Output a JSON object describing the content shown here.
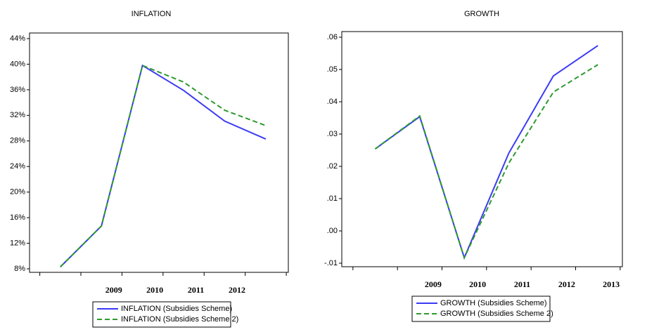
{
  "chart_data": [
    {
      "type": "line",
      "title": "INFLATION",
      "categories": [
        null,
        "2009",
        "2010",
        "2011",
        "2012",
        null
      ],
      "series": [
        {
          "name": "INFLATION (Subsidies Scheme)",
          "color": "#3b3bf5",
          "dashed": false,
          "values": [
            8.3,
            14.7,
            39.8,
            35.9,
            31.1,
            28.3
          ]
        },
        {
          "name": "INFLATION (Subsidies Scheme 2)",
          "color": "#2e9a2e",
          "dashed": true,
          "values": [
            8.3,
            14.7,
            39.8,
            37.2,
            32.8,
            30.4
          ]
        }
      ],
      "ylim": [
        8,
        44
      ],
      "yticks": [
        {
          "value": 8,
          "label": "8%"
        },
        {
          "value": 12,
          "label": "12%"
        },
        {
          "value": 16,
          "label": "16%"
        },
        {
          "value": 20,
          "label": "20%"
        },
        {
          "value": 24,
          "label": "24%"
        },
        {
          "value": 28,
          "label": "28%"
        },
        {
          "value": 32,
          "label": "32%"
        },
        {
          "value": 36,
          "label": "36%"
        },
        {
          "value": 40,
          "label": "40%"
        },
        {
          "value": 44,
          "label": "44%"
        }
      ],
      "grid": false
    },
    {
      "type": "line",
      "title": "GROWTH",
      "categories": [
        null,
        "2009",
        "2010",
        "2011",
        "2012",
        "2013"
      ],
      "series": [
        {
          "name": "GROWTH (Subsidies Scheme)",
          "color": "#3b3bf5",
          "dashed": false,
          "values": [
            0.0254,
            0.0354,
            -0.0083,
            0.0241,
            0.048,
            0.0574
          ]
        },
        {
          "name": "GROWTH (Subsidies Scheme 2)",
          "color": "#2e9a2e",
          "dashed": true,
          "values": [
            0.0254,
            0.0356,
            -0.0083,
            0.021,
            0.043,
            0.0515
          ]
        }
      ],
      "ylim": [
        -0.01,
        0.06
      ],
      "yticks": [
        {
          "value": -0.01,
          "label": "-.01"
        },
        {
          "value": 0,
          "label": ".00"
        },
        {
          "value": 0.01,
          "label": ".01"
        },
        {
          "value": 0.02,
          "label": ".02"
        },
        {
          "value": 0.03,
          "label": ".03"
        },
        {
          "value": 0.04,
          "label": ".04"
        },
        {
          "value": 0.05,
          "label": ".05"
        },
        {
          "value": 0.06,
          "label": ".06"
        }
      ],
      "grid": false
    }
  ]
}
